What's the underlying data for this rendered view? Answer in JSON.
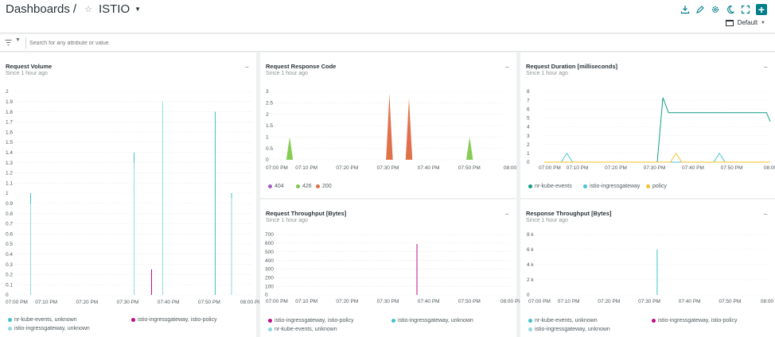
{
  "header": {
    "breadcrumb_root": "Dashboards",
    "separator": "/",
    "star_icon": "star-outline-icon",
    "dashboard_name": "ISTIO",
    "dropdown_icon": "caret-down-icon",
    "tools": [
      "download-icon",
      "edit-pencil-icon",
      "settings-gear-icon",
      "dark-mode-moon-icon",
      "fullscreen-icon",
      "add-plus-icon"
    ],
    "add_label": "+",
    "time_picker": "Default"
  },
  "filter": {
    "placeholder": "Search for any attribute or value.",
    "value": ""
  },
  "widgets": [
    {
      "title": "Request Volume",
      "subtitle": "Since 1 hour ago",
      "more": "...",
      "chart_data": {
        "type": "line",
        "x": [
          "07:00 PM",
          "07:10 PM",
          "07:20 PM",
          "07:30 PM",
          "07:40 PM",
          "07:50 PM",
          "08:00 PM"
        ],
        "xticks": [
          "07:00 PM",
          "07:10 PM",
          "07:20 PM",
          "07:30 PM",
          "07:40 PM",
          "07:50 PM",
          "08:00 PI"
        ],
        "yticks": [
          "0",
          "0.1",
          "0.2",
          "0.3",
          "0.4",
          "0.5",
          "0.6",
          "0.7",
          "0.8",
          "0.9",
          "1",
          "1.1",
          "1.2",
          "1.3",
          "1.4",
          "1.5",
          "1.6",
          "1.7",
          "1.8",
          "1.9",
          "2"
        ],
        "ylim": [
          0,
          2
        ],
        "series": [
          {
            "name": "nr-kube-events, unknown",
            "color": "#41c1c8",
            "points": [
              [
                4.1,
                1.0
              ],
              [
                30.1,
                1.4
              ],
              [
                50.5,
                1.8
              ],
              [
                54.6,
                1.0
              ]
            ]
          },
          {
            "name": "istio-ingressgateway, istio-policy",
            "color": "#c00d83",
            "points": [
              [
                34.5,
                0.25
              ],
              [
                37.3,
                0.45
              ]
            ]
          },
          {
            "name": "istio-ingressgateway, unknown",
            "color": "#8fd9de",
            "points": [
              [
                4.1,
                0.9
              ],
              [
                30.1,
                1.3
              ],
              [
                37.3,
                1.9
              ],
              [
                54.6,
                0.95
              ]
            ]
          }
        ]
      }
    },
    {
      "title": "Request Response Code",
      "subtitle": "Since 1 hour ago",
      "more": "...",
      "chart_data": {
        "type": "area",
        "x": [
          "07:00 PM",
          "07:10 PM",
          "07:20 PM",
          "07:30 PM",
          "07:40 PM",
          "07:50 PM",
          "08:00 PM"
        ],
        "xticks": [
          "07:00 PM",
          "07:10 PM",
          "07:20 PM",
          "07:30 PM",
          "07:40 PM",
          "07:50 PM",
          "08:00"
        ],
        "yticks": [
          "0",
          "0.5",
          "1",
          "1.5",
          "2",
          "2.5",
          "3"
        ],
        "ylim": [
          0,
          3
        ],
        "series": [
          {
            "name": "404",
            "color": "#a35ebd",
            "points": [
              [
                31,
                1.9
              ],
              [
                36,
                1.9
              ]
            ]
          },
          {
            "name": "426",
            "color": "#7fc84a",
            "points": [
              [
                5.5,
                1.0
              ],
              [
                31,
                1.1
              ],
              [
                36,
                0.6
              ],
              [
                51.5,
                1.0
              ]
            ]
          },
          {
            "name": "200",
            "color": "#e36f48",
            "points": [
              [
                31,
                2.9
              ],
              [
                36,
                2.7
              ]
            ]
          }
        ]
      }
    },
    {
      "title": "Request Duration [milliseconds]",
      "subtitle": "Since 1 hour ago",
      "more": "...",
      "chart_data": {
        "type": "line",
        "x": [
          "07:00 PM",
          "07:10 PM",
          "07:20 PM",
          "07:30 PM",
          "07:40 PM",
          "07:50 PM",
          "08:00 PM"
        ],
        "xticks": [
          "07:00 PM",
          "07:10 PM",
          "07:20 PM",
          "07:30 PM",
          "07:40 PM",
          "07:50 PM",
          "08:00"
        ],
        "yticks": [
          "0",
          "1",
          "2",
          "3",
          "4",
          "5",
          "6",
          "7",
          "8"
        ],
        "ylim": [
          0,
          8
        ],
        "series": [
          {
            "name": "nr-kube-events",
            "color": "#129e87",
            "points": [
              [
                0,
                0
              ],
              [
                30,
                0
              ],
              [
                31.5,
                7.3
              ],
              [
                33,
                5.6
              ],
              [
                59,
                5.6
              ],
              [
                60,
                4.6
              ]
            ]
          },
          {
            "name": "istio-ingressgateway",
            "color": "#45c4d4",
            "points": [
              [
                0,
                0
              ],
              [
                4.5,
                0
              ],
              [
                6,
                1.0
              ],
              [
                7.5,
                0
              ],
              [
                45,
                0
              ],
              [
                46.5,
                1.0
              ],
              [
                48,
                0
              ],
              [
                60,
                0
              ]
            ]
          },
          {
            "name": "policy",
            "color": "#f2c12e",
            "points": [
              [
                0,
                0
              ],
              [
                33.5,
                0
              ],
              [
                35,
                1.0
              ],
              [
                36.5,
                0
              ],
              [
                60,
                0
              ]
            ]
          }
        ]
      }
    },
    {
      "title": "Request Throughput [Bytes]",
      "subtitle": "Since 1 hour ago",
      "more": "...",
      "chart_data": {
        "type": "line",
        "x": [
          "07:00 PM",
          "07:10 PM",
          "07:20 PM",
          "07:30 PM",
          "07:40 PM",
          "07:50 PM",
          "08:00 PM"
        ],
        "xticks": [
          "07:00 PM",
          "07:10 PM",
          "07:20 PM",
          "07:30 PM",
          "07:40 PM",
          "07:50 PM",
          "08:00 PI"
        ],
        "yticks": [
          "0",
          "100",
          "200",
          "300",
          "400",
          "500",
          "600",
          "700"
        ],
        "ylim": [
          0,
          700
        ],
        "series": [
          {
            "name": "istio-ingressgateway, istio-policy",
            "color": "#c00d83",
            "points": [
              [
                36,
                590
              ]
            ]
          },
          {
            "name": "istio-ingressgateway, unknown",
            "color": "#41c1c8",
            "points": []
          },
          {
            "name": "nr-kube-events, unknown",
            "color": "#8fd9de",
            "points": []
          }
        ]
      }
    },
    {
      "title": "Response Throughput [Bytes]",
      "subtitle": "Since 1 hour ago",
      "more": "...",
      "chart_data": {
        "type": "line",
        "x": [
          "07:00 PM",
          "07:10 PM",
          "07:20 PM",
          "07:30 PM",
          "07:40 PM",
          "07:50 PM",
          "08:00 PM"
        ],
        "xticks": [
          "07:00 PM",
          "07:10 PM",
          "07:20 PM",
          "07:30 PM",
          "07:40 PM",
          "07:50 PM",
          "08:00 PI"
        ],
        "yticks": [
          "0",
          "2 k",
          "4 k",
          "6 k",
          "8 k"
        ],
        "ylim": [
          0,
          8000
        ],
        "series": [
          {
            "name": "nr-kube-events, unknown",
            "color": "#41c1c8",
            "points": [
              [
                31,
                6000
              ]
            ]
          },
          {
            "name": "istio-ingressgateway, istio-policy",
            "color": "#c00d83",
            "points": []
          },
          {
            "name": "istio-ingressgateway, unknown",
            "color": "#8fd9de",
            "points": []
          }
        ]
      }
    }
  ]
}
